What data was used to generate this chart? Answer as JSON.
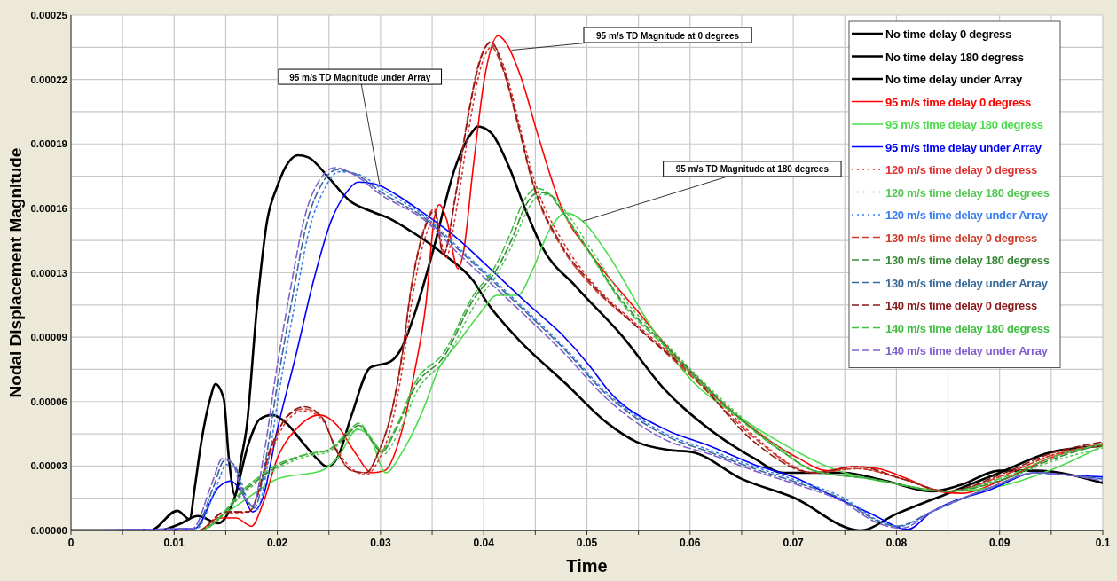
{
  "chart_data": {
    "type": "line",
    "xlabel": "Time",
    "ylabel": "Nodal Displacement Magnitude",
    "xlim": [
      0,
      0.1
    ],
    "ylim": [
      0,
      0.00025
    ],
    "xticks": [
      0,
      {
        "value": 0.005,
        "label": null
      },
      0.01,
      {
        "value": 0.015,
        "label": null
      },
      0.02,
      {
        "value": 0.025,
        "label": null
      },
      0.03,
      {
        "value": 0.035,
        "label": null
      },
      0.04,
      {
        "value": 0.045,
        "label": null
      },
      0.05,
      {
        "value": 0.055,
        "label": null
      },
      0.06,
      {
        "value": 0.065,
        "label": null
      },
      0.07,
      {
        "value": 0.075,
        "label": null
      },
      0.08,
      {
        "value": 0.085,
        "label": null
      },
      0.09,
      {
        "value": 0.095,
        "label": null
      },
      0.1
    ],
    "yticks": [
      {
        "value": 0,
        "label": "0.00000"
      },
      {
        "value": 1.5625e-05,
        "label": null
      },
      {
        "value": 3.125e-05,
        "label": "0.00003"
      },
      {
        "value": 4.6875e-05,
        "label": null
      },
      {
        "value": 6.25e-05,
        "label": "0.00006"
      },
      {
        "value": 7.8125e-05,
        "label": null
      },
      {
        "value": 9.375e-05,
        "label": "0.00009"
      },
      {
        "value": 0.000109375,
        "label": null
      },
      {
        "value": 0.000125,
        "label": "0.00013"
      },
      {
        "value": 0.000140625,
        "label": null
      },
      {
        "value": 0.00015625,
        "label": "0.00016"
      },
      {
        "value": 0.000171875,
        "label": null
      },
      {
        "value": 0.0001875,
        "label": "0.00019"
      },
      {
        "value": 0.000203125,
        "label": null
      },
      {
        "value": 0.00021875,
        "label": "0.00022"
      },
      {
        "value": 0.000234375,
        "label": null
      },
      {
        "value": 0.00025,
        "label": "0.00025"
      }
    ],
    "grid": true,
    "legend": "top right",
    "marker": "none",
    "annotations": [
      {
        "text": "95 m/s TD Magnitude at 0 degrees",
        "x": 0.0427,
        "y": 0.000233
      },
      {
        "text": "95 m/s TD Magnitude under Array",
        "x": 0.0299,
        "y": 0.000168
      },
      {
        "text": "95 m/s TD Magnitude at 180 degrees",
        "x": 0.0496,
        "y": 0.00015
      }
    ],
    "series": [
      {
        "name": "No time delay 0 degress",
        "color": "#000000",
        "line_style": "solid",
        "x": [
          0,
          0.0085,
          0.0105,
          0.0123,
          0.0143,
          0.0158,
          0.0172,
          0.0183,
          0.0195,
          0.0209,
          0.0224,
          0.0238,
          0.0248,
          0.0258,
          0.0272,
          0.029,
          0.031,
          0.0321,
          0.0333,
          0.035,
          0.0373,
          0.039,
          0.0394,
          0.0407,
          0.0424,
          0.0441,
          0.0456,
          0.049,
          0.0533,
          0.0576,
          0.0619,
          0.0662,
          0.069,
          0.072,
          0.0748,
          0.079,
          0.0834,
          0.0862,
          0.09,
          0.0935,
          0.1
        ],
        "values": [
          0,
          0,
          3e-06,
          7e-06,
          3.5e-06,
          1.5e-05,
          4.2e-05,
          5.4e-05,
          5.6e-05,
          5.2e-05,
          4.3e-05,
          3.5e-05,
          3.1e-05,
          3.5e-05,
          5.6e-05,
          7.9e-05,
          8.2e-05,
          8.9e-05,
          0.000105,
          0.000134,
          0.000177,
          0.000194,
          0.000196,
          0.000193,
          0.000177,
          0.000155,
          0.000138,
          0.000118,
          9.5e-05,
          6.8e-05,
          4.9e-05,
          3.5e-05,
          2.8e-05,
          2.8e-05,
          2.8e-05,
          2.4e-05,
          1.9e-05,
          2.2e-05,
          2.9e-05,
          2.9e-05,
          2.3e-05
        ]
      },
      {
        "name": "No time delay 180 degress",
        "color": "#000000",
        "line_style": "solid"
      },
      {
        "name": "No time delay under Array",
        "color": "#000000",
        "line_style": "solid",
        "x": [
          0,
          0.0077,
          0.0103,
          0.0115,
          0.012,
          0.0126,
          0.0135,
          0.014,
          0.0148,
          0.0153,
          0.0159,
          0.0165,
          0.017,
          0.018,
          0.019,
          0.02,
          0.021,
          0.022,
          0.023,
          0.025,
          0.027,
          0.029,
          0.031,
          0.033,
          0.0361,
          0.039,
          0.0404,
          0.0433,
          0.048,
          0.052,
          0.0548,
          0.058,
          0.0602,
          0.065,
          0.07,
          0.0765,
          0.08,
          0.085,
          0.09,
          0.095,
          0.1
        ],
        "values": [
          0,
          0,
          9.5e-06,
          5.5e-06,
          2.1e-05,
          4.2e-05,
          6.4e-05,
          7.1e-05,
          6.4e-05,
          3.5e-05,
          1.7e-05,
          3.5e-05,
          4.9e-05,
          0.000107,
          0.00015,
          0.000167,
          0.000178,
          0.000182,
          0.000181,
          0.000171,
          0.00016,
          0.000155,
          0.000151,
          0.000145,
          0.000134,
          0.000121,
          0.00011,
          9.3e-05,
          7.1e-05,
          5.2e-05,
          4.3e-05,
          3.9e-05,
          3.8e-05,
          2.5e-05,
          1.6e-05,
          0,
          8e-06,
          1.8e-05,
          2.8e-05,
          3.8e-05,
          4.1e-05
        ]
      },
      {
        "name": "95 m/s time delay 0 degress",
        "color": "#ff0000",
        "line_style": "solid",
        "x": [
          0,
          0.0124,
          0.0143,
          0.016,
          0.0175,
          0.0186,
          0.02,
          0.0218,
          0.0241,
          0.0258,
          0.0275,
          0.0292,
          0.0304,
          0.0321,
          0.0333,
          0.0344,
          0.0352,
          0.0357,
          0.0364,
          0.0375,
          0.038,
          0.039,
          0.0401,
          0.0414,
          0.0421,
          0.0436,
          0.0453,
          0.0476,
          0.0504,
          0.0548,
          0.0605,
          0.0662,
          0.0705,
          0.0733,
          0.0757,
          0.0782,
          0.0811,
          0.084,
          0.0862,
          0.0905,
          0.0948,
          0.1
        ],
        "values": [
          0,
          0,
          6e-06,
          6e-06,
          2e-06,
          1.3e-05,
          3.5e-05,
          4.9e-05,
          5.6e-05,
          5.1e-05,
          3.8e-05,
          2.8e-05,
          2.9e-05,
          4.9e-05,
          7.7e-05,
          0.00011,
          0.000151,
          0.000158,
          0.000151,
          0.000127,
          0.000134,
          0.000177,
          0.00022,
          0.00024,
          0.000237,
          0.00022,
          0.000191,
          0.000156,
          0.000134,
          0.000107,
          7.4e-05,
          4.9e-05,
          3.5e-05,
          2.9e-05,
          3.1e-05,
          3e-05,
          2.5e-05,
          1.9e-05,
          1.8e-05,
          2.5e-05,
          3.5e-05,
          4.2e-05
        ]
      },
      {
        "name": "95 m/s time delay 180 degress",
        "color": "#4cdc4c",
        "line_style": "solid",
        "x": [
          0,
          0.0124,
          0.0149,
          0.0172,
          0.02,
          0.0243,
          0.0258,
          0.0278,
          0.029,
          0.0305,
          0.0321,
          0.0344,
          0.0355,
          0.0375,
          0.0396,
          0.0413,
          0.0433,
          0.0447,
          0.0464,
          0.048,
          0.0496,
          0.0519,
          0.0562,
          0.0605,
          0.0648,
          0.069,
          0.0733,
          0.0806,
          0.0849,
          0.0905,
          0.0948,
          0.1
        ],
        "values": [
          0,
          0,
          8e-06,
          1.6e-05,
          2.5e-05,
          2.9e-05,
          3.5e-05,
          4.9e-05,
          4.5e-05,
          2.8e-05,
          3.8e-05,
          6.2e-05,
          7.7e-05,
          9.1e-05,
          0.000105,
          0.000114,
          0.000114,
          0.000126,
          0.000146,
          0.000154,
          0.00015,
          0.000135,
          9.9e-05,
          7.1e-05,
          5.5e-05,
          4.2e-05,
          3.1e-05,
          2.2e-05,
          1.9e-05,
          2.2e-05,
          2.9e-05,
          4.1e-05
        ]
      },
      {
        "name": "95 m/s time delay under Array",
        "color": "#0000ff",
        "line_style": "solid",
        "x": [
          0,
          0.012,
          0.0143,
          0.0155,
          0.0166,
          0.0176,
          0.0186,
          0.02,
          0.0218,
          0.0235,
          0.0252,
          0.0267,
          0.0278,
          0.0295,
          0.0315,
          0.0333,
          0.0376,
          0.0404,
          0.0447,
          0.0476,
          0.0504,
          0.0519,
          0.0576,
          0.0619,
          0.0662,
          0.0705,
          0.0733,
          0.0776,
          0.0811,
          0.0834,
          0.0892,
          0.0935,
          0.0963,
          0.1
        ],
        "values": [
          0,
          1e-06,
          2.1e-05,
          2.4e-05,
          1.8e-05,
          9e-06,
          1.6e-05,
          4.9e-05,
          8.5e-05,
          0.000121,
          0.00015,
          0.000164,
          0.000169,
          0.000168,
          0.000163,
          0.000157,
          0.000141,
          0.000128,
          0.000108,
          9.5e-05,
          7.9e-05,
          6.9e-05,
          4.9e-05,
          4.1e-05,
          3.2e-05,
          2.5e-05,
          1.8e-05,
          8e-06,
          5e-07,
          9e-06,
          2e-05,
          2.8e-05,
          2.7e-05,
          2.6e-05
        ]
      },
      {
        "name": "120 m/s time delay 0 degress",
        "color": "#e03030",
        "line_style": "dotted",
        "x": [
          0,
          0.0124,
          0.0149,
          0.0172,
          0.0195,
          0.0209,
          0.0226,
          0.0243,
          0.0258,
          0.0272,
          0.0286,
          0.0298,
          0.031,
          0.0321,
          0.033,
          0.0338,
          0.0346,
          0.0354,
          0.0363,
          0.0375,
          0.0386,
          0.0398,
          0.0409,
          0.0421,
          0.0435,
          0.0449,
          0.0478,
          0.0504,
          0.0548,
          0.0605,
          0.0662,
          0.072,
          0.0762,
          0.0806,
          0.0849,
          0.0905,
          0.0948,
          0.1
        ],
        "values": [
          0,
          0,
          8e-06,
          9e-06,
          3.9e-05,
          5.3e-05,
          5.8e-05,
          5.4e-05,
          3.9e-05,
          3e-05,
          2.7e-05,
          3.4e-05,
          5e-05,
          7.8e-05,
          0.00011,
          0.000132,
          0.000146,
          0.000152,
          0.000132,
          0.00016,
          0.000196,
          0.000226,
          0.000235,
          0.000223,
          0.000196,
          0.00017,
          0.000139,
          0.000121,
          0.0001,
          7.5e-05,
          4.6e-05,
          2.8e-05,
          3e-05,
          2.5e-05,
          1.9e-05,
          2.7e-05,
          3.6e-05,
          4.1e-05
        ]
      },
      {
        "name": "120 m/s time delay 180 degrees",
        "color": "#55c855",
        "line_style": "dotted",
        "x": [
          0,
          0.0124,
          0.0172,
          0.02,
          0.0229,
          0.0249,
          0.0267,
          0.0281,
          0.0294,
          0.0303,
          0.0317,
          0.0337,
          0.0363,
          0.0392,
          0.0415,
          0.0429,
          0.0443,
          0.0456,
          0.0467,
          0.0479,
          0.0506,
          0.0535,
          0.0576,
          0.0634,
          0.069,
          0.072,
          0.0776,
          0.0849,
          0.0905,
          0.0948,
          0.1
        ],
        "values": [
          0,
          0,
          2e-05,
          3e-05,
          3.6e-05,
          3.8e-05,
          4.5e-05,
          5e-05,
          4.2e-05,
          3.7e-05,
          4.7e-05,
          6.9e-05,
          8.3e-05,
          0.00011,
          0.000126,
          0.00014,
          0.000156,
          0.000163,
          0.000162,
          0.000155,
          0.000135,
          0.000113,
          9.1e-05,
          6.2e-05,
          3.9e-05,
          2.9e-05,
          2.5e-05,
          1.9e-05,
          2.5e-05,
          3.3e-05,
          4e-05
        ]
      },
      {
        "name": "120 m/s time delay under Array",
        "color": "#3a7df0",
        "line_style": "dotted",
        "x": [
          0,
          0.0122,
          0.014,
          0.0151,
          0.016,
          0.0171,
          0.018,
          0.0191,
          0.0202,
          0.0217,
          0.0231,
          0.0245,
          0.026,
          0.0277,
          0.0303,
          0.0344,
          0.0376,
          0.0413,
          0.0447,
          0.0476,
          0.0519,
          0.0576,
          0.0619,
          0.0662,
          0.0705,
          0.0748,
          0.0782,
          0.0803,
          0.0834,
          0.0892,
          0.0935,
          0.0963,
          0.1
        ],
        "values": [
          0,
          1e-06,
          2e-05,
          3.2e-05,
          3e-05,
          1.5e-05,
          1e-05,
          3.3e-05,
          6.8e-05,
          0.00011,
          0.000146,
          0.000165,
          0.000174,
          0.000173,
          0.000165,
          0.000152,
          0.000137,
          0.00012,
          0.000104,
          9e-05,
          6.7e-05,
          4.7e-05,
          3.9e-05,
          3.1e-05,
          2.4e-05,
          1.6e-05,
          5e-06,
          2e-06,
          9e-06,
          2.1e-05,
          2.8e-05,
          2.7e-05,
          2.5e-05
        ]
      },
      {
        "name": "130 m/s time delay 0 degress",
        "color": "#d03a2a",
        "line_style": "dashed",
        "x": [
          0,
          0.0124,
          0.0149,
          0.0172,
          0.0195,
          0.0209,
          0.0226,
          0.0243,
          0.0258,
          0.0272,
          0.0286,
          0.0298,
          0.031,
          0.0321,
          0.033,
          0.0338,
          0.0344,
          0.0352,
          0.0361,
          0.0373,
          0.0384,
          0.0396,
          0.0405,
          0.0419,
          0.0433,
          0.0447,
          0.0476,
          0.0504,
          0.0548,
          0.0605,
          0.0662,
          0.072,
          0.0762,
          0.0806,
          0.0849,
          0.0905,
          0.0948,
          0.1
        ],
        "values": [
          0,
          0,
          9e-06,
          9e-06,
          4.1e-05,
          5.5e-05,
          5.9e-05,
          5.5e-05,
          3.8e-05,
          2.9e-05,
          2.8e-05,
          3.8e-05,
          5.6e-05,
          8.6e-05,
          0.000119,
          0.000139,
          0.000149,
          0.000156,
          0.000134,
          0.000164,
          0.000199,
          0.000228,
          0.000236,
          0.000223,
          0.000197,
          0.000169,
          0.000137,
          0.000119,
          9.9e-05,
          7.3e-05,
          4.5e-05,
          2.8e-05,
          3e-05,
          2.5e-05,
          1.9e-05,
          2.7e-05,
          3.6e-05,
          4.2e-05
        ]
      },
      {
        "name": "130 m/s time delay 180 degress",
        "color": "#3a8a3a",
        "line_style": "dashed",
        "x": [
          0,
          0.0124,
          0.0172,
          0.02,
          0.0229,
          0.0249,
          0.0267,
          0.0279,
          0.0292,
          0.0301,
          0.0315,
          0.0335,
          0.0361,
          0.039,
          0.0413,
          0.0427,
          0.0441,
          0.0453,
          0.0464,
          0.0476,
          0.0504,
          0.0533,
          0.0576,
          0.0634,
          0.069,
          0.072,
          0.0776,
          0.0849,
          0.0905,
          0.0948,
          0.1
        ],
        "values": [
          0,
          0,
          2.1e-05,
          3.1e-05,
          3.7e-05,
          3.9e-05,
          4.6e-05,
          5.1e-05,
          4.3e-05,
          3.8e-05,
          4.9e-05,
          7.1e-05,
          8.4e-05,
          0.000112,
          0.000127,
          0.000141,
          0.000158,
          0.000164,
          0.000163,
          0.000155,
          0.000134,
          0.000112,
          9e-05,
          6.1e-05,
          3.8e-05,
          2.9e-05,
          2.5e-05,
          1.9e-05,
          2.5e-05,
          3.4e-05,
          4.2e-05
        ]
      },
      {
        "name": "130 m/s time delay under Array",
        "color": "#3a6a9a",
        "line_style": "dashed",
        "x": [
          0,
          0.012,
          0.0138,
          0.0149,
          0.0158,
          0.0169,
          0.0178,
          0.0189,
          0.02,
          0.0215,
          0.0229,
          0.0243,
          0.0258,
          0.0275,
          0.0301,
          0.0344,
          0.0376,
          0.0413,
          0.0447,
          0.0476,
          0.0519,
          0.0576,
          0.0619,
          0.0662,
          0.0705,
          0.0748,
          0.078,
          0.08,
          0.0834,
          0.0892,
          0.0935,
          0.0963,
          0.1
        ],
        "values": [
          0,
          1e-06,
          2.1e-05,
          3.4e-05,
          3.2e-05,
          1.6e-05,
          1.1e-05,
          3.5e-05,
          7.1e-05,
          0.000114,
          0.00015,
          0.000168,
          0.000175,
          0.000173,
          0.000164,
          0.000151,
          0.000136,
          0.000119,
          0.000103,
          8.9e-05,
          6.6e-05,
          4.6e-05,
          3.8e-05,
          3e-05,
          2.3e-05,
          1.5e-05,
          5e-06,
          2e-06,
          9e-06,
          2.1e-05,
          2.8e-05,
          2.7e-05,
          2.5e-05
        ]
      },
      {
        "name": "140 m/s time delay 0 degress",
        "color": "#8b1a1a",
        "line_style": "dashed",
        "x": [
          0,
          0.0124,
          0.0149,
          0.0172,
          0.0195,
          0.0209,
          0.0226,
          0.0243,
          0.0258,
          0.0272,
          0.0286,
          0.0298,
          0.031,
          0.0321,
          0.033,
          0.0338,
          0.0344,
          0.0352,
          0.0361,
          0.0373,
          0.0384,
          0.0396,
          0.0407,
          0.0419,
          0.0433,
          0.0447,
          0.0476,
          0.0504,
          0.0548,
          0.0605,
          0.0662,
          0.072,
          0.0762,
          0.0806,
          0.0849,
          0.0905,
          0.0948,
          0.1
        ],
        "values": [
          0,
          0,
          9e-06,
          9e-06,
          4.2e-05,
          5.5e-05,
          6e-05,
          5.5e-05,
          3.8e-05,
          2.9e-05,
          2.8e-05,
          3.8e-05,
          5.6e-05,
          8.5e-05,
          0.000118,
          0.000138,
          0.000148,
          0.000155,
          0.000134,
          0.000163,
          0.000198,
          0.000227,
          0.000237,
          0.000224,
          0.000198,
          0.00017,
          0.000138,
          0.00012,
          9.9e-05,
          7.4e-05,
          4.3e-05,
          2.8e-05,
          3.1e-05,
          2.5e-05,
          1.9e-05,
          2.8e-05,
          3.7e-05,
          4.3e-05
        ]
      },
      {
        "name": "140 m/s time delay 180 degress",
        "color": "#40c040",
        "line_style": "dashed",
        "x": [
          0,
          0.0124,
          0.0172,
          0.02,
          0.0229,
          0.0249,
          0.0267,
          0.0279,
          0.0292,
          0.0301,
          0.0315,
          0.0335,
          0.0361,
          0.039,
          0.0411,
          0.0425,
          0.0439,
          0.0451,
          0.0462,
          0.0474,
          0.0502,
          0.0533,
          0.0576,
          0.0634,
          0.069,
          0.072,
          0.0776,
          0.0849,
          0.0905,
          0.0948,
          0.1
        ],
        "values": [
          0,
          0,
          2.2e-05,
          3.2e-05,
          3.7e-05,
          3.9e-05,
          4.7e-05,
          5.2e-05,
          4.4e-05,
          3.9e-05,
          5e-05,
          7.3e-05,
          8.6e-05,
          0.000114,
          0.000128,
          0.000143,
          0.00016,
          0.000166,
          0.000164,
          0.000156,
          0.000135,
          0.000111,
          8.9e-05,
          6e-05,
          3.8e-05,
          2.9e-05,
          2.5e-05,
          1.9e-05,
          2.6e-05,
          3.5e-05,
          4.2e-05
        ]
      },
      {
        "name": "140 m/s time delay under Array",
        "color": "#8060d0",
        "line_style": "dashed",
        "x": [
          0,
          0.0118,
          0.0136,
          0.0147,
          0.0156,
          0.0167,
          0.0176,
          0.0187,
          0.0198,
          0.0213,
          0.0227,
          0.0241,
          0.0256,
          0.0273,
          0.03,
          0.0344,
          0.0376,
          0.0413,
          0.0447,
          0.0476,
          0.0519,
          0.0576,
          0.0619,
          0.0662,
          0.0705,
          0.0748,
          0.078,
          0.0805,
          0.0834,
          0.0892,
          0.0935,
          0.0963,
          0.1
        ],
        "values": [
          0,
          1e-06,
          2.2e-05,
          3.5e-05,
          3.3e-05,
          1.7e-05,
          1.2e-05,
          3.7e-05,
          7.4e-05,
          0.000118,
          0.000153,
          0.00017,
          0.000176,
          0.000173,
          0.000163,
          0.00015,
          0.000134,
          0.000117,
          0.000101,
          8.7e-05,
          6.4e-05,
          4.4e-05,
          3.7e-05,
          2.9e-05,
          2.2e-05,
          1.4e-05,
          4e-06,
          1e-06,
          9e-06,
          2.1e-05,
          2.8e-05,
          2.7e-05,
          2.4e-05
        ]
      }
    ]
  }
}
